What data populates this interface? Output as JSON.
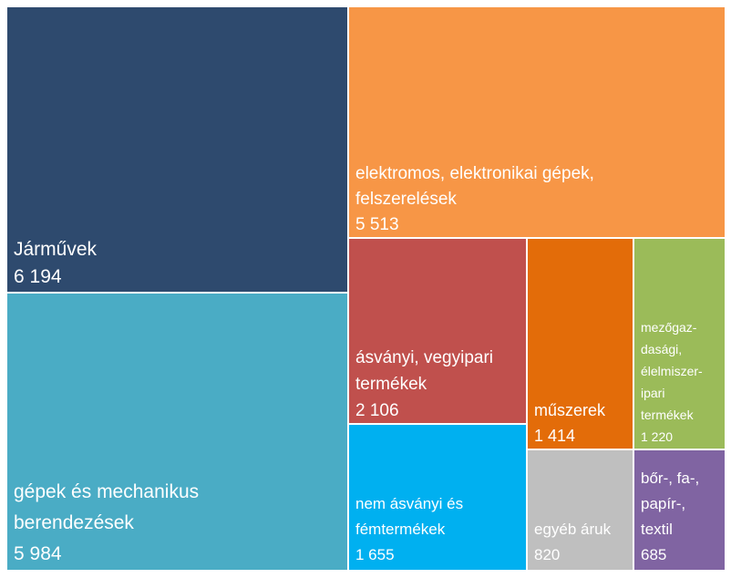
{
  "chart_data": {
    "type": "treemap",
    "title": "",
    "items": [
      {
        "label_lines": [
          "Járművek"
        ],
        "value": 6194,
        "value_label": "6 194",
        "color": "#2e4a6e"
      },
      {
        "label_lines": [
          "gépek és mechanikus",
          "berendezések"
        ],
        "value": 5984,
        "value_label": "5 984",
        "color": "#4aacc5"
      },
      {
        "label_lines": [
          "elektromos, elektronikai gépek,",
          "felszerelések"
        ],
        "value": 5513,
        "value_label": "5 513",
        "color": "#f79646"
      },
      {
        "label_lines": [
          "ásványi, vegyipari",
          "termékek"
        ],
        "value": 2106,
        "value_label": "2 106",
        "color": "#c0504d"
      },
      {
        "label_lines": [
          "nem ásványi és",
          "fémtermékek"
        ],
        "value": 1655,
        "value_label": "1 655",
        "color": "#00b0f0"
      },
      {
        "label_lines": [
          "műszerek"
        ],
        "value": 1414,
        "value_label": "1 414",
        "color": "#e36c09"
      },
      {
        "label_lines": [
          "mezőgaz-",
          "dasági,",
          "élelmiszer-",
          "ipari",
          "termékek"
        ],
        "value": 1220,
        "value_label": "1 220",
        "color": "#9bbb59"
      },
      {
        "label_lines": [
          "egyéb áruk"
        ],
        "value": 820,
        "value_label": "820",
        "color": "#bfbfbf"
      },
      {
        "label_lines": [
          "bőr-, fa-,",
          "papír-,",
          "textil"
        ],
        "value": 685,
        "value_label": "685",
        "color": "#8064a2"
      }
    ]
  }
}
